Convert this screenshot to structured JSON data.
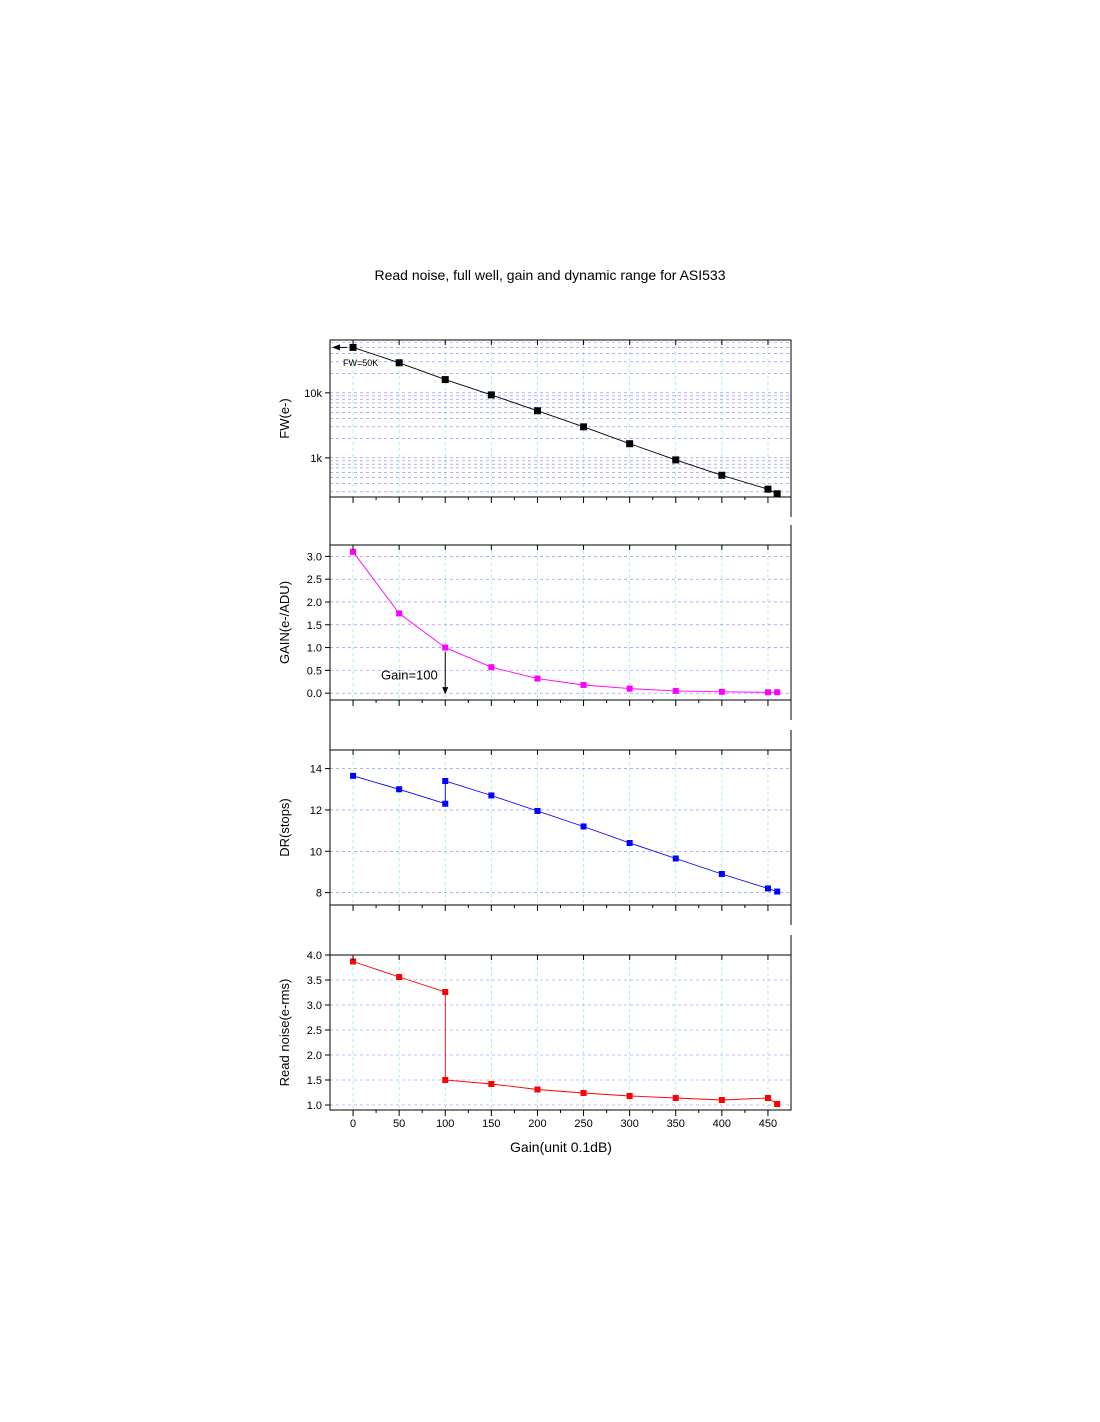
{
  "figure": {
    "title": "Read noise, full well, gain and dynamic range for ASI533",
    "xlabel": "Gain(unit 0.1dB)"
  },
  "chart_data": [
    {
      "type": "line",
      "ylabel": "FW(e-)",
      "yscale": "log",
      "ylim": [
        250,
        65000
      ],
      "ytick_values": [
        1000,
        10000
      ],
      "ytick_labels": [
        "1k",
        "10k"
      ],
      "grid": true,
      "color": "#000000",
      "x": [
        0,
        50,
        100,
        150,
        200,
        250,
        300,
        350,
        400,
        450,
        460
      ],
      "series": [
        {
          "values": [
            50000,
            29000,
            16000,
            9300,
            5300,
            3000,
            1650,
            930,
            540,
            330,
            280
          ]
        }
      ],
      "annotations": [
        {
          "text": "FW=50K",
          "arrow": "left",
          "x": 0,
          "y": 50000
        }
      ]
    },
    {
      "type": "line",
      "ylabel": "GAIN(e-/ADU)",
      "ylim": [
        -0.15,
        3.25
      ],
      "ytick_values": [
        0,
        0.5,
        1,
        1.5,
        2,
        2.5,
        3
      ],
      "ytick_labels": [
        "0.0",
        "0.5",
        "1.0",
        "1.5",
        "2.0",
        "2.5",
        "3.0"
      ],
      "grid": true,
      "color": "#ff00ff",
      "x": [
        0,
        50,
        100,
        150,
        200,
        250,
        300,
        350,
        400,
        450,
        460
      ],
      "series": [
        {
          "values": [
            3.1,
            1.75,
            1.0,
            0.57,
            0.32,
            0.18,
            0.1,
            0.05,
            0.03,
            0.02,
            0.02
          ]
        }
      ],
      "annotations": [
        {
          "text": "Gain=100",
          "arrow": "down",
          "x": 100,
          "y": 0.0
        }
      ]
    },
    {
      "type": "line",
      "ylabel": "DR(stops)",
      "ylim": [
        7.4,
        14.9
      ],
      "ytick_values": [
        8,
        10,
        12,
        14
      ],
      "ytick_labels": [
        "8",
        "10",
        "12",
        "14"
      ],
      "grid": true,
      "color": "#0000ff",
      "x": [
        0,
        50,
        100,
        100,
        150,
        200,
        250,
        300,
        350,
        400,
        450,
        460
      ],
      "series": [
        {
          "values": [
            13.65,
            13.0,
            12.3,
            13.4,
            12.7,
            11.95,
            11.2,
            10.4,
            9.65,
            8.9,
            8.2,
            8.05
          ]
        }
      ]
    },
    {
      "type": "line",
      "ylabel": "Read noise(e-rms)",
      "ylim": [
        0.9,
        4.0
      ],
      "ytick_values": [
        1,
        1.5,
        2,
        2.5,
        3,
        3.5,
        4
      ],
      "ytick_labels": [
        "1.0",
        "1.5",
        "2.0",
        "2.5",
        "3.0",
        "3.5",
        "4.0"
      ],
      "grid": true,
      "color": "#ff0000",
      "x": [
        0,
        50,
        100,
        100,
        150,
        200,
        250,
        300,
        350,
        400,
        450,
        460
      ],
      "series": [
        {
          "values": [
            3.87,
            3.56,
            3.26,
            1.5,
            1.42,
            1.31,
            1.24,
            1.18,
            1.14,
            1.1,
            1.14,
            1.02
          ]
        }
      ],
      "xtick_values": [
        0,
        50,
        100,
        150,
        200,
        250,
        300,
        350,
        400,
        450
      ],
      "xtick_labels": [
        "0",
        "50",
        "100",
        "150",
        "200",
        "250",
        "300",
        "350",
        "400",
        "450"
      ],
      "xlim": [
        -25,
        475
      ]
    }
  ]
}
